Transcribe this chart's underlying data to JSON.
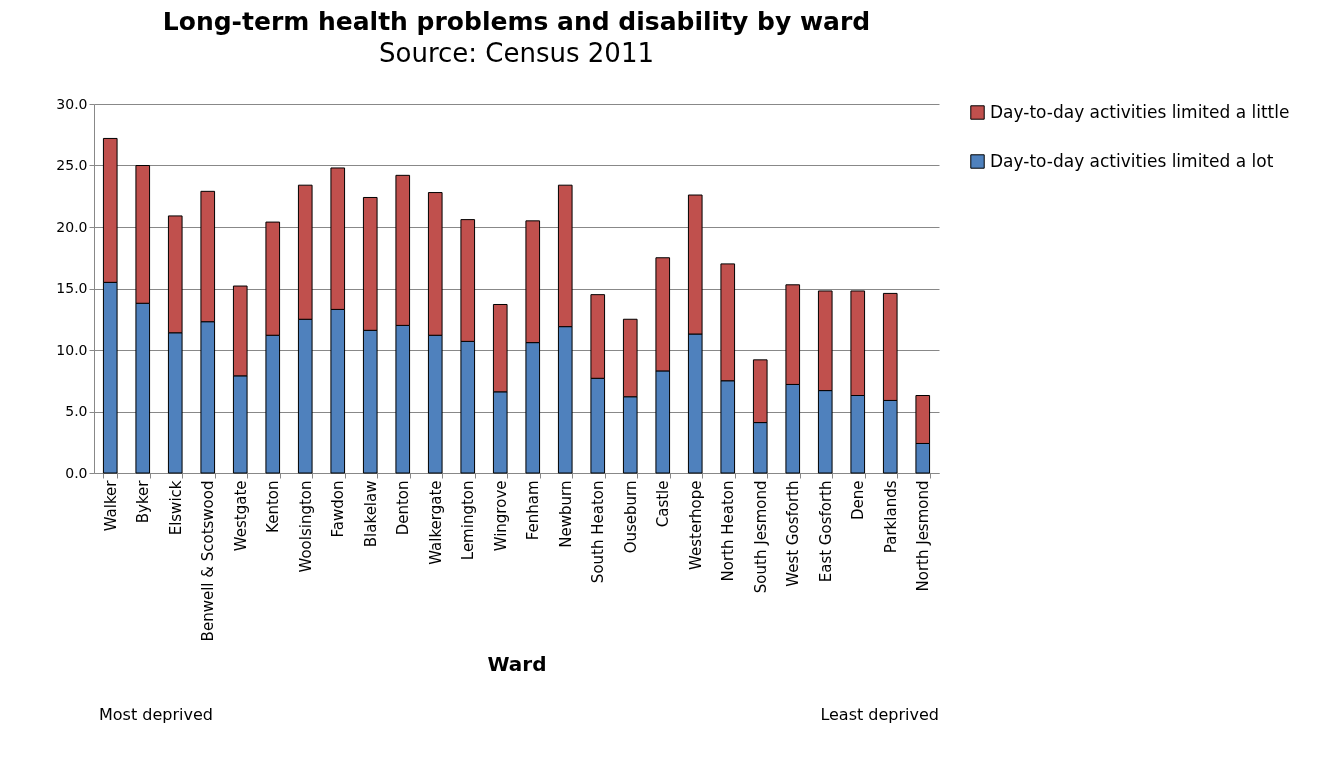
{
  "chart_data": {
    "type": "bar",
    "title": "Long-term health problems and disability by ward",
    "subtitle": "Source: Census 2011",
    "xlabel": "Ward",
    "categories": [
      "Walker",
      "Byker",
      "Elswick",
      "Benwell & Scotswood",
      "Westgate",
      "Kenton",
      "Woolsington",
      "Fawdon",
      "Blakelaw",
      "Denton",
      "Walkergate",
      "Lemington",
      "Wingrove",
      "Fenham",
      "Newburn",
      "South Heaton",
      "Ouseburn",
      "Castle",
      "Westerhope",
      "North Heaton",
      "South Jesmond",
      "West Gosforth",
      "East Gosforth",
      "Dene",
      "Parklands",
      "North Jesmond"
    ],
    "stacked": true,
    "series": [
      {
        "name": "Day-to-day activities limited a lot",
        "color": "#4f81bd",
        "values": [
          15.5,
          13.8,
          11.4,
          12.3,
          7.9,
          11.2,
          12.5,
          13.3,
          11.6,
          12.0,
          11.2,
          10.7,
          6.6,
          10.6,
          11.9,
          7.7,
          6.2,
          8.3,
          11.3,
          7.5,
          4.1,
          7.2,
          6.7,
          6.3,
          5.9,
          2.4
        ]
      },
      {
        "name": "Day-to-day activities limited a little",
        "color": "#c0504d",
        "values": [
          11.7,
          11.2,
          9.5,
          10.6,
          7.3,
          9.2,
          10.9,
          11.5,
          10.8,
          12.2,
          11.6,
          9.9,
          7.1,
          9.9,
          11.5,
          6.8,
          6.3,
          9.2,
          11.3,
          9.5,
          5.1,
          8.1,
          8.1,
          8.5,
          8.7,
          3.9
        ]
      }
    ],
    "ylim": [
      0,
      30
    ],
    "yticks": [
      {
        "value": 0,
        "label": "0.0"
      },
      {
        "value": 5,
        "label": "5.0"
      },
      {
        "value": 10,
        "label": "10.0"
      },
      {
        "value": 15,
        "label": "15.0"
      },
      {
        "value": 20,
        "label": "20.0"
      },
      {
        "value": 25,
        "label": "25.0"
      },
      {
        "value": 30,
        "label": "30.0"
      }
    ],
    "grid": "y",
    "legend": "right",
    "annotations": [
      "Most deprived",
      "Least deprived"
    ]
  }
}
